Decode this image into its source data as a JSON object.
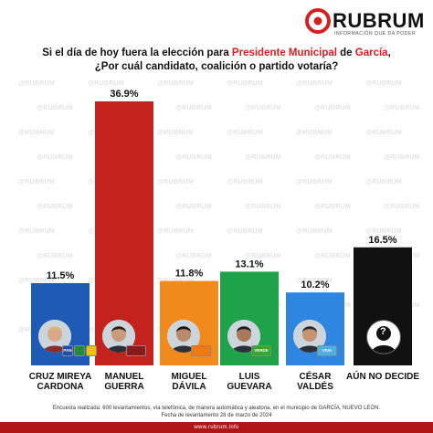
{
  "brand": {
    "name": "RUBRUM",
    "tagline": "INFORMACIÓN QUE DA PODER",
    "accent": "#d42020"
  },
  "question": {
    "line1_pre": "Si el día de hoy fuera la elección para ",
    "line1_hl": "Presidente Municipal",
    "line1_mid": " de ",
    "line1_hl2": "García",
    "line1_end": ",",
    "line2": "¿Por cuál candidato, coalición o partido votaría?"
  },
  "chart_data": {
    "type": "bar",
    "categories": [
      "CRUZ MIREYA CARDONA",
      "MANUEL GUERRA",
      "MIGUEL DÁVILA",
      "LUIS GUEVARA",
      "CÉSAR VALDÉS",
      "AÚN NO DECIDE"
    ],
    "values": [
      11.5,
      36.9,
      11.8,
      13.1,
      10.2,
      16.5
    ],
    "value_labels": [
      "11.5%",
      "36.9%",
      "11.8%",
      "13.1%",
      "10.2%",
      "16.5%"
    ],
    "colors": [
      "#1f5bb5",
      "#c4221c",
      "#f08a1c",
      "#1ea34a",
      "#2f86e0",
      "#111111"
    ],
    "ylim": [
      0,
      36.9
    ],
    "grid": false,
    "legend": "none"
  },
  "candidates": [
    {
      "line1": "CRUZ MIREYA",
      "line2": "CARDONA"
    },
    {
      "line1": "MANUEL",
      "line2": "GUERRA"
    },
    {
      "line1": "MIGUEL",
      "line2": "DÁVILA"
    },
    {
      "line1": "LUIS",
      "line2": "GUEVARA"
    },
    {
      "line1": "CÉSAR",
      "line2": "VALDÉS"
    },
    {
      "line1": "AÚN NO DECIDE",
      "line2": ""
    }
  ],
  "party_logos": [
    [
      "pan-icon",
      "pri-icon",
      "prd-icon"
    ],
    [
      "morena-icon"
    ],
    [
      "movimiento-ciudadano-icon"
    ],
    [
      "pvem-icon"
    ],
    [
      "viva-icon"
    ],
    []
  ],
  "badge_labels": {
    "pan": "PAN",
    "verde": "VERDE",
    "viva": "VIVA",
    "unknown": "?"
  },
  "watermark": "@RUBRUM",
  "footer": {
    "note_line1": "Encuesta realizada: 600 levantamientos, vía telefónica, de manera automática y aleatoria, en el municipio de GARCÍA, NUEVO LEÓN.",
    "note_line2": "Fecha de levantamento 28 de marzo de 2024",
    "url": "www.rubrum.info"
  }
}
